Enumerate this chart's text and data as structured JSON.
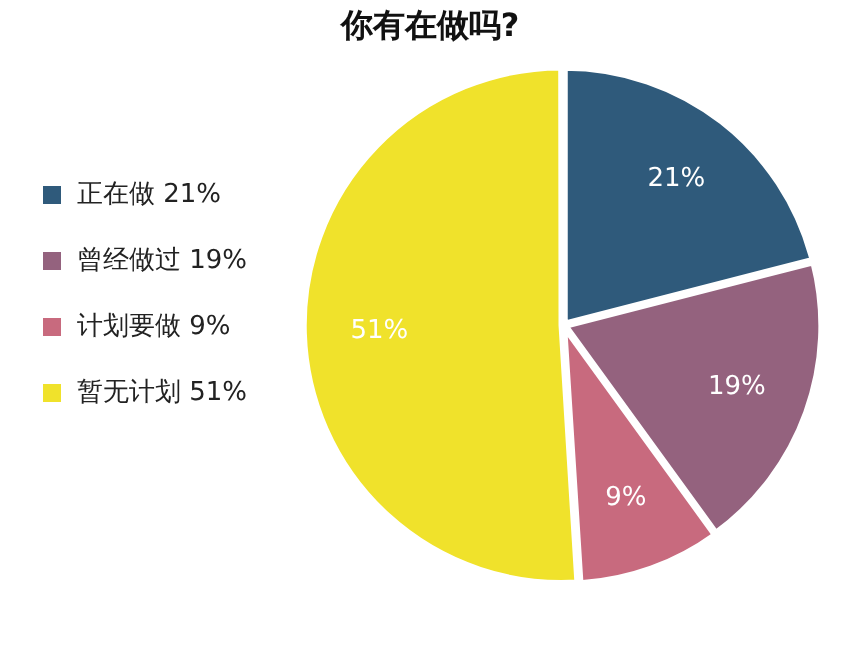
{
  "chart_data": {
    "type": "pie",
    "title": "你有在做吗?",
    "categories": [
      "正在做 21%",
      "曾经做过 19%",
      "计划要做 9%",
      "暂无计划 51%"
    ],
    "values": [
      21,
      19,
      9,
      51
    ],
    "value_labels": [
      "21%",
      "19%",
      "9%",
      "51%"
    ],
    "colors": [
      "#2f5a7b",
      "#94627e",
      "#c86a7e",
      "#f0e22b"
    ],
    "legend": "left"
  }
}
